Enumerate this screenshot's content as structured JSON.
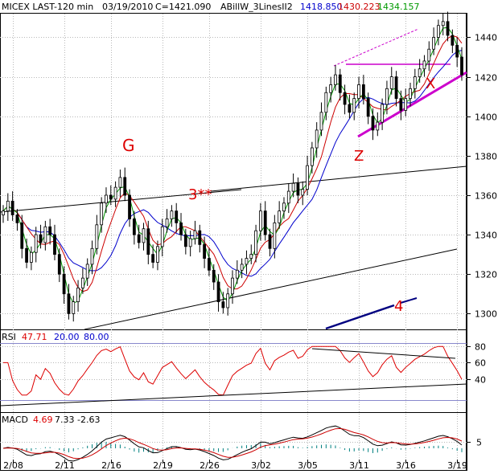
{
  "header": {
    "symbol": "MICEX LAST-120 min",
    "date": "03/19/2010",
    "close": "C=1421.090",
    "indicator": "ABillW_3LinesII2",
    "line1_value": "1418.850",
    "line2_value": "1430.223",
    "line3_value": "1434.157"
  },
  "colors": {
    "line1": "#0000cc",
    "line2": "#cc0000",
    "line3": "#009900",
    "annotation": "#dd0000",
    "trend_magenta": "#cc00cc",
    "wave4": "#000080",
    "rsi": "#dd0000",
    "macd_fast": "#000000",
    "macd_slow": "#cc0000",
    "macd_hist": "#008080"
  },
  "annotations": {
    "G": "G",
    "wave3": "3**",
    "wave4": "4",
    "X": "X",
    "Z": "Z"
  },
  "rsi_panel": {
    "label": "RSI",
    "value": "47.71",
    "level_low": "20.00",
    "level_high": "80.00",
    "ticks": [
      "80",
      "60",
      "40"
    ]
  },
  "macd_panel": {
    "label": "MACD",
    "value": "4.69",
    "signal": "7.33",
    "hist": "-2.63",
    "ticks": [
      "5"
    ]
  },
  "chart_data": {
    "type": "candlestick",
    "x_ticks": [
      "2/08",
      "2/11",
      "2/16",
      "2/19",
      "2/26",
      "3/02",
      "3/05",
      "3/11",
      "3/16",
      "3/19"
    ],
    "y_ticks": [
      1300,
      1320,
      1340,
      1360,
      1380,
      1400,
      1420,
      1440
    ],
    "ylim": [
      1292,
      1452
    ],
    "grid": true,
    "close": [
      1352,
      1357,
      1350,
      1346,
      1333,
      1326,
      1331,
      1340,
      1336,
      1344,
      1340,
      1330,
      1320,
      1310,
      1300,
      1306,
      1313,
      1318,
      1325,
      1333,
      1345,
      1356,
      1360,
      1358,
      1364,
      1369,
      1360,
      1348,
      1340,
      1336,
      1343,
      1330,
      1326,
      1334,
      1344,
      1348,
      1352,
      1346,
      1340,
      1334,
      1338,
      1342,
      1335,
      1328,
      1322,
      1316,
      1306,
      1303,
      1310,
      1318,
      1322,
      1325,
      1328,
      1330,
      1342,
      1352,
      1340,
      1333,
      1346,
      1352,
      1356,
      1362,
      1366,
      1360,
      1363,
      1375,
      1384,
      1393,
      1402,
      1412,
      1416,
      1421,
      1412,
      1406,
      1402,
      1409,
      1416,
      1409,
      1400,
      1393,
      1397,
      1406,
      1414,
      1420,
      1409,
      1403,
      1409,
      1414,
      1420,
      1424,
      1428,
      1434,
      1440,
      1446,
      1448,
      1441,
      1436,
      1430,
      1421
    ]
  }
}
